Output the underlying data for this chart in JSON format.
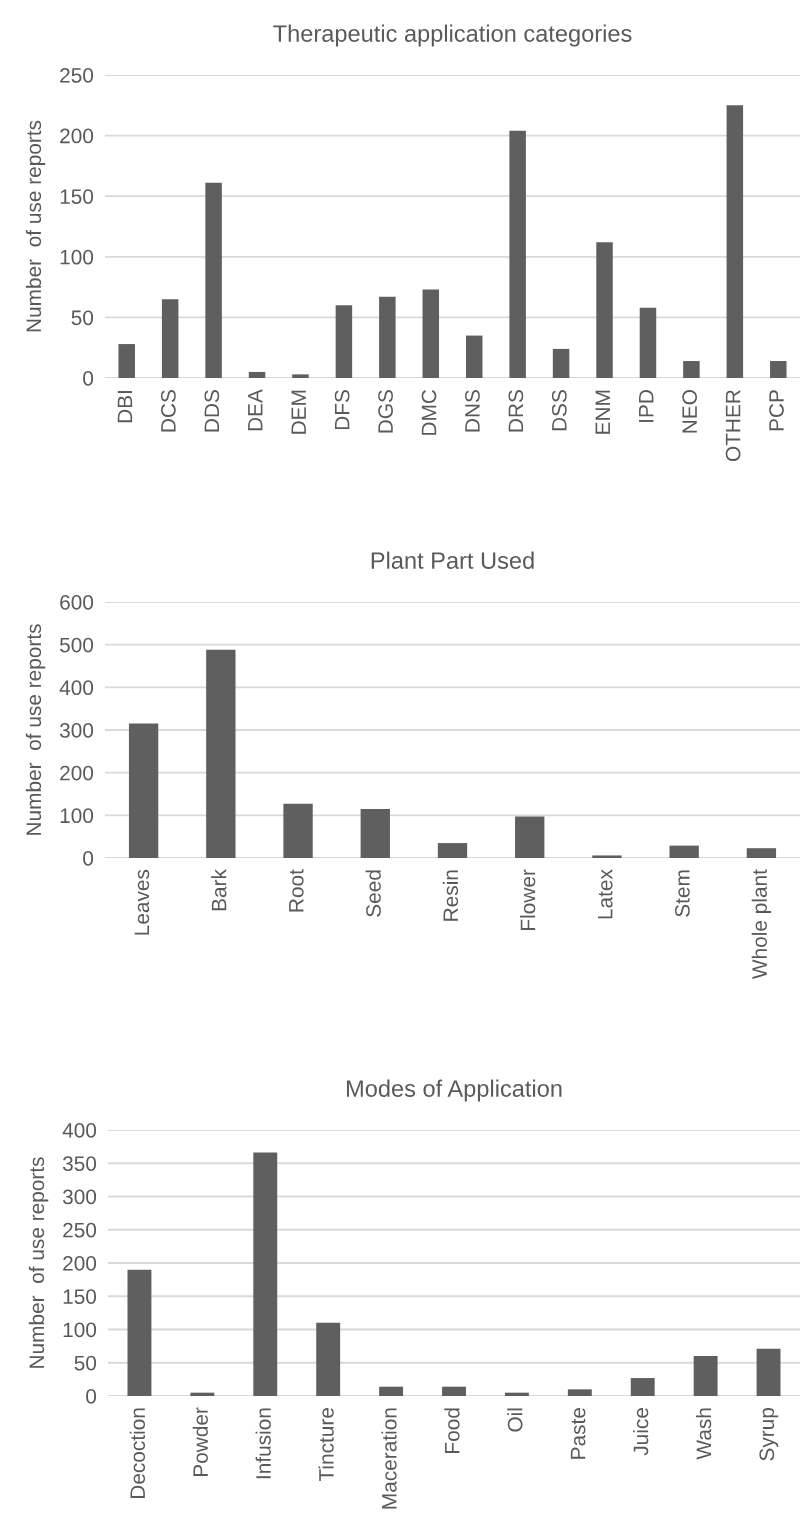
{
  "chart_data": [
    {
      "type": "bar",
      "title": "Therapeutic application categories",
      "ylabel": "Number  of use reports",
      "color": "#5f5f5f",
      "grid": "y",
      "ylim": [
        0,
        250
      ],
      "yticks": [
        0,
        50,
        100,
        150,
        200,
        250
      ],
      "categories": [
        "DBI",
        "DCS",
        "DDS",
        "DEA",
        "DEM",
        "DFS",
        "DGS",
        "DMC",
        "DNS",
        "DRS",
        "DSS",
        "ENM",
        "IPD",
        "NEO",
        "OTHER",
        "PCP"
      ],
      "values": [
        28,
        65,
        161,
        5,
        3,
        60,
        67,
        73,
        35,
        204,
        24,
        112,
        58,
        14,
        225,
        14
      ]
    },
    {
      "type": "bar",
      "title": "Plant Part Used",
      "ylabel": "Number  of use reports",
      "color": "#5f5f5f",
      "grid": "y",
      "ylim": [
        0,
        600
      ],
      "yticks": [
        0,
        100,
        200,
        300,
        400,
        500,
        600
      ],
      "categories": [
        "Leaves",
        "Bark",
        "Root",
        "Seed",
        "Resin",
        "Flower",
        "Latex",
        "Stem",
        "Whole plant"
      ],
      "values": [
        315,
        488,
        127,
        115,
        35,
        97,
        6,
        29,
        23
      ]
    },
    {
      "type": "bar",
      "title": "Modes of Application",
      "ylabel": "Number  of use reports",
      "color": "#5f5f5f",
      "grid": "y",
      "ylim": [
        0,
        400
      ],
      "yticks": [
        0,
        50,
        100,
        150,
        200,
        250,
        300,
        350,
        400
      ],
      "categories": [
        "Decoction",
        "Powder",
        "Infusion",
        "Tincture",
        "Maceration",
        "Food",
        "Oil",
        "Paste",
        "Juice",
        "Wash",
        "Syrup"
      ],
      "values": [
        190,
        5,
        366,
        110,
        14,
        14,
        5,
        10,
        27,
        60,
        71
      ]
    }
  ]
}
